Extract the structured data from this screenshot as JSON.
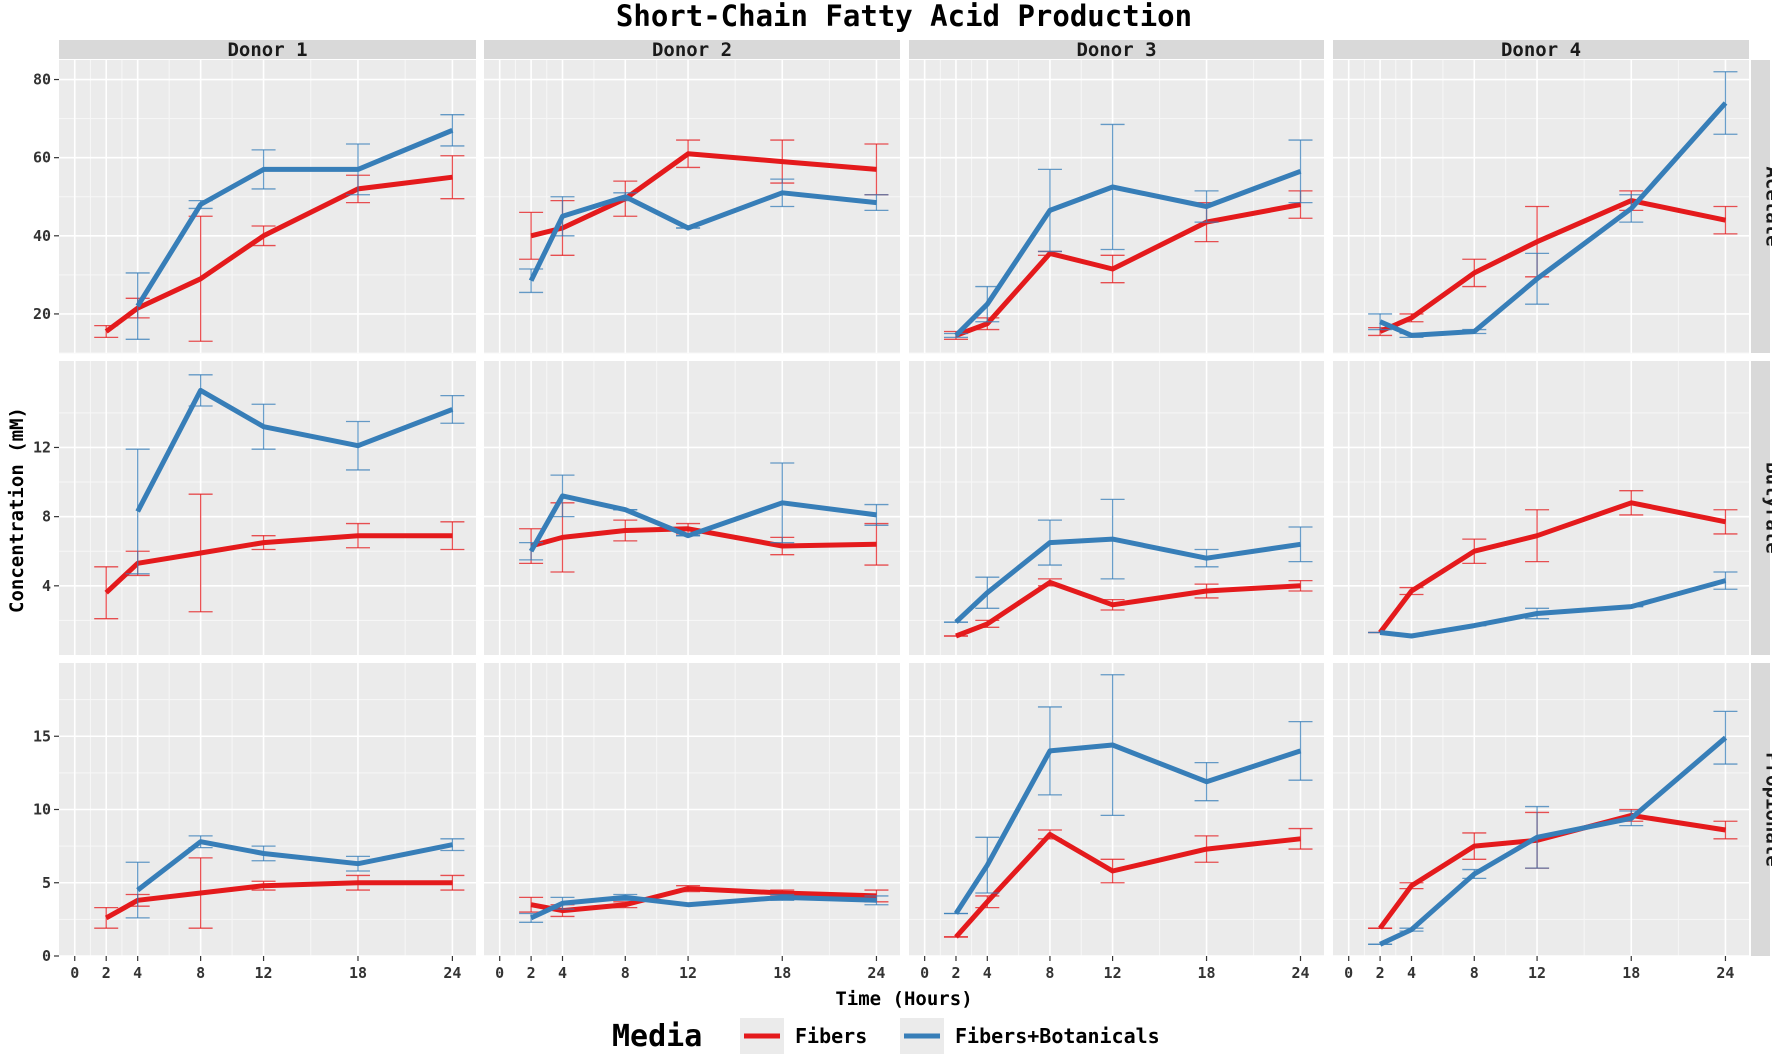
{
  "chart_data": {
    "type": "line",
    "title": "Short-Chain Fatty Acid Production",
    "xlabel": "Time (Hours)",
    "ylabel": "Concentration (mM)",
    "x_ticks": [
      0,
      2,
      4,
      8,
      12,
      18,
      24
    ],
    "columns": [
      "Donor 1",
      "Donor 2",
      "Donor 3",
      "Donor 4"
    ],
    "rows": [
      {
        "name": "Acetate",
        "ylim": [
          10,
          85
        ],
        "ticks": [
          20,
          40,
          60,
          80
        ]
      },
      {
        "name": "Butyrate",
        "ylim": [
          0,
          17
        ],
        "ticks": [
          4,
          8,
          12
        ]
      },
      {
        "name": "Propionate",
        "ylim": [
          0,
          20
        ],
        "ticks": [
          0,
          5,
          10,
          15
        ]
      }
    ],
    "legend": {
      "title": "Media",
      "position": "bottom"
    },
    "series": [
      {
        "name": "Fibers",
        "color": "#e41a1c"
      },
      {
        "name": "Fibers+Botanicals",
        "color": "#377eb8"
      }
    ],
    "panels": [
      {
        "row": "Acetate",
        "donor": "Donor 1",
        "lines": [
          {
            "series": "Fibers",
            "points": [
              [
                2,
                15.5,
                1.5
              ],
              [
                4,
                21.5,
                2.5
              ],
              [
                8,
                29,
                16
              ],
              [
                12,
                40,
                2.5
              ],
              [
                18,
                52,
                3.5
              ],
              [
                24,
                55,
                5.5
              ]
            ]
          },
          {
            "series": "Fibers+Botanicals",
            "points": [
              [
                4,
                22,
                8.5
              ],
              [
                8,
                48,
                1
              ],
              [
                12,
                57,
                5
              ],
              [
                18,
                57,
                6.5
              ],
              [
                24,
                67,
                4
              ]
            ]
          }
        ]
      },
      {
        "row": "Acetate",
        "donor": "Donor 2",
        "lines": [
          {
            "series": "Fibers",
            "points": [
              [
                2,
                40,
                6
              ],
              [
                4,
                42,
                7
              ],
              [
                8,
                49.5,
                4.5
              ],
              [
                12,
                61,
                3.5
              ],
              [
                18,
                59,
                5.5
              ],
              [
                24,
                57,
                6.5
              ]
            ]
          },
          {
            "series": "Fibers+Botanicals",
            "points": [
              [
                2,
                28.5,
                3
              ],
              [
                4,
                45,
                5
              ],
              [
                8,
                50,
                1
              ],
              [
                12,
                42,
                0
              ],
              [
                18,
                51,
                3.5
              ],
              [
                24,
                48.5,
                2
              ]
            ]
          }
        ]
      },
      {
        "row": "Acetate",
        "donor": "Donor 3",
        "lines": [
          {
            "series": "Fibers",
            "points": [
              [
                2,
                14.5,
                1
              ],
              [
                4,
                17.5,
                1.5
              ],
              [
                8,
                35.5,
                0.5
              ],
              [
                12,
                31.5,
                3.5
              ],
              [
                18,
                43.5,
                5
              ],
              [
                24,
                48,
                3.5
              ]
            ]
          },
          {
            "series": "Fibers+Botanicals",
            "points": [
              [
                2,
                14.5,
                0.5
              ],
              [
                4,
                22.5,
                4.5
              ],
              [
                8,
                46.5,
                10.5
              ],
              [
                12,
                52.5,
                16
              ],
              [
                18,
                47.5,
                4
              ],
              [
                24,
                56.5,
                8
              ]
            ]
          }
        ]
      },
      {
        "row": "Acetate",
        "donor": "Donor 4",
        "lines": [
          {
            "series": "Fibers",
            "points": [
              [
                2,
                15.5,
                1
              ],
              [
                4,
                19,
                1
              ],
              [
                8,
                30.5,
                3.5
              ],
              [
                12,
                38.5,
                9
              ],
              [
                18,
                49,
                2.5
              ],
              [
                24,
                44,
                3.5
              ]
            ]
          },
          {
            "series": "Fibers+Botanicals",
            "points": [
              [
                2,
                18,
                2
              ],
              [
                4,
                14.5,
                0.5
              ],
              [
                8,
                15.5,
                0.5
              ],
              [
                12,
                29,
                6.5
              ],
              [
                18,
                47,
                3.5
              ],
              [
                24,
                74,
                8
              ]
            ]
          }
        ]
      },
      {
        "row": "Butyrate",
        "donor": "Donor 1",
        "lines": [
          {
            "series": "Fibers",
            "points": [
              [
                2,
                3.6,
                1.5
              ],
              [
                4,
                5.3,
                0.7
              ],
              [
                8,
                5.9,
                3.4
              ],
              [
                12,
                6.5,
                0.4
              ],
              [
                18,
                6.9,
                0.7
              ],
              [
                24,
                6.9,
                0.8
              ]
            ]
          },
          {
            "series": "Fibers+Botanicals",
            "points": [
              [
                4,
                8.3,
                3.6
              ],
              [
                8,
                15.3,
                0.9
              ],
              [
                12,
                13.2,
                1.3
              ],
              [
                18,
                12.1,
                1.4
              ],
              [
                24,
                14.2,
                0.8
              ]
            ]
          }
        ]
      },
      {
        "row": "Butyrate",
        "donor": "Donor 2",
        "lines": [
          {
            "series": "Fibers",
            "points": [
              [
                2,
                6.3,
                1
              ],
              [
                4,
                6.8,
                2
              ],
              [
                8,
                7.2,
                0.6
              ],
              [
                12,
                7.3,
                0.3
              ],
              [
                18,
                6.3,
                0.5
              ],
              [
                24,
                6.4,
                1.2
              ]
            ]
          },
          {
            "series": "Fibers+Botanicals",
            "points": [
              [
                2,
                6,
                0.5
              ],
              [
                4,
                9.2,
                1.2
              ],
              [
                8,
                8.4,
                0
              ],
              [
                12,
                6.9,
                0
              ],
              [
                18,
                8.8,
                2.3
              ],
              [
                24,
                8.1,
                0.6
              ]
            ]
          }
        ]
      },
      {
        "row": "Butyrate",
        "donor": "Donor 3",
        "lines": [
          {
            "series": "Fibers",
            "points": [
              [
                2,
                1.1,
                0
              ],
              [
                4,
                1.8,
                0.2
              ],
              [
                8,
                4.2,
                0.2
              ],
              [
                12,
                2.9,
                0.3
              ],
              [
                18,
                3.7,
                0.4
              ],
              [
                24,
                4,
                0.3
              ]
            ]
          },
          {
            "series": "Fibers+Botanicals",
            "points": [
              [
                2,
                1.9,
                0
              ],
              [
                4,
                3.6,
                0.9
              ],
              [
                8,
                6.5,
                1.3
              ],
              [
                12,
                6.7,
                2.3
              ],
              [
                18,
                5.6,
                0.5
              ],
              [
                24,
                6.4,
                1
              ]
            ]
          }
        ]
      },
      {
        "row": "Butyrate",
        "donor": "Donor 4",
        "lines": [
          {
            "series": "Fibers",
            "points": [
              [
                2,
                1.3,
                0
              ],
              [
                4,
                3.7,
                0.2
              ],
              [
                8,
                6,
                0.7
              ],
              [
                12,
                6.9,
                1.5
              ],
              [
                18,
                8.8,
                0.7
              ],
              [
                24,
                7.7,
                0.7
              ]
            ]
          },
          {
            "series": "Fibers+Botanicals",
            "points": [
              [
                2,
                1.3,
                0
              ],
              [
                4,
                1.1,
                0
              ],
              [
                8,
                1.7,
                0
              ],
              [
                12,
                2.4,
                0.3
              ],
              [
                18,
                2.8,
                0
              ],
              [
                24,
                4.3,
                0.5
              ]
            ]
          }
        ]
      },
      {
        "row": "Propionate",
        "donor": "Donor 1",
        "lines": [
          {
            "series": "Fibers",
            "points": [
              [
                2,
                2.6,
                0.7
              ],
              [
                4,
                3.8,
                0.4
              ],
              [
                8,
                4.3,
                2.4
              ],
              [
                12,
                4.8,
                0.3
              ],
              [
                18,
                5,
                0.5
              ],
              [
                24,
                5,
                0.5
              ]
            ]
          },
          {
            "series": "Fibers+Botanicals",
            "points": [
              [
                4,
                4.5,
                1.9
              ],
              [
                8,
                7.8,
                0.4
              ],
              [
                12,
                7,
                0.5
              ],
              [
                18,
                6.3,
                0.5
              ],
              [
                24,
                7.6,
                0.4
              ]
            ]
          }
        ]
      },
      {
        "row": "Propionate",
        "donor": "Donor 2",
        "lines": [
          {
            "series": "Fibers",
            "points": [
              [
                2,
                3.5,
                0.5
              ],
              [
                4,
                3.1,
                0.4
              ],
              [
                8,
                3.5,
                0.2
              ],
              [
                12,
                4.6,
                0.2
              ],
              [
                18,
                4.3,
                0.2
              ],
              [
                24,
                4.1,
                0.4
              ]
            ]
          },
          {
            "series": "Fibers+Botanicals",
            "points": [
              [
                2,
                2.6,
                0.3
              ],
              [
                4,
                3.6,
                0.4
              ],
              [
                8,
                4,
                0.2
              ],
              [
                12,
                3.5,
                0
              ],
              [
                18,
                4,
                0.2
              ],
              [
                24,
                3.8,
                0.3
              ]
            ]
          }
        ]
      },
      {
        "row": "Propionate",
        "donor": "Donor 3",
        "lines": [
          {
            "series": "Fibers",
            "points": [
              [
                2,
                1.3,
                0
              ],
              [
                4,
                3.7,
                0.4
              ],
              [
                8,
                8.3,
                0.3
              ],
              [
                12,
                5.8,
                0.8
              ],
              [
                18,
                7.3,
                0.9
              ],
              [
                24,
                8,
                0.7
              ]
            ]
          },
          {
            "series": "Fibers+Botanicals",
            "points": [
              [
                2,
                2.9,
                0
              ],
              [
                4,
                6.2,
                1.9
              ],
              [
                8,
                14,
                3
              ],
              [
                12,
                14.4,
                4.8
              ],
              [
                18,
                11.9,
                1.3
              ],
              [
                24,
                14,
                2
              ]
            ]
          }
        ]
      },
      {
        "row": "Propionate",
        "donor": "Donor 4",
        "lines": [
          {
            "series": "Fibers",
            "points": [
              [
                2,
                1.9,
                0
              ],
              [
                4,
                4.8,
                0.2
              ],
              [
                8,
                7.5,
                0.9
              ],
              [
                12,
                7.9,
                1.9
              ],
              [
                18,
                9.6,
                0.4
              ],
              [
                24,
                8.6,
                0.6
              ]
            ]
          },
          {
            "series": "Fibers+Botanicals",
            "points": [
              [
                2,
                0.8,
                0
              ],
              [
                4,
                1.8,
                0.1
              ],
              [
                8,
                5.6,
                0.3
              ],
              [
                12,
                8.1,
                2.1
              ],
              [
                18,
                9.4,
                0.5
              ],
              [
                24,
                14.9,
                1.8
              ]
            ]
          }
        ]
      }
    ]
  }
}
